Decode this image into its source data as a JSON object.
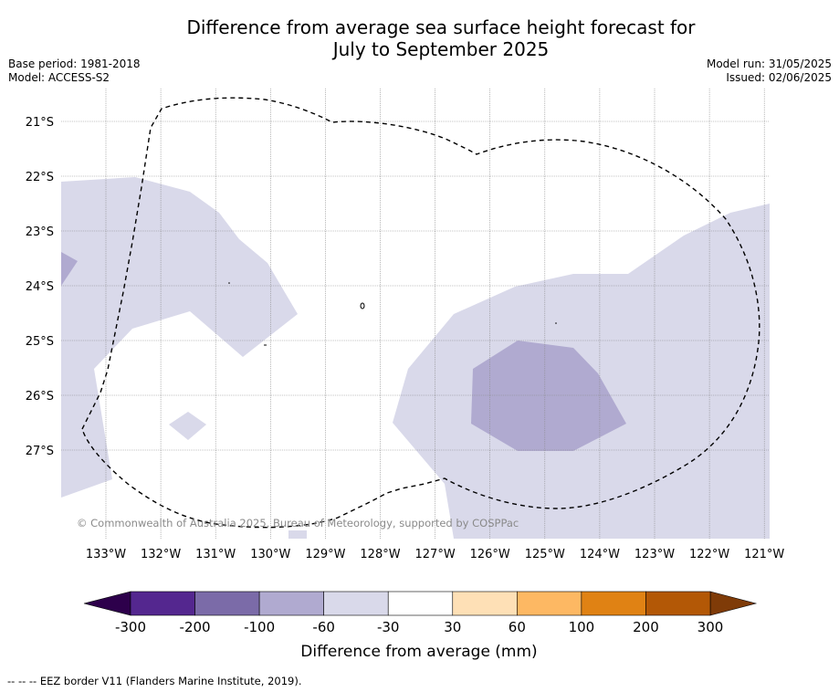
{
  "title_line1": "Difference from average sea surface height forecast for",
  "title_line2": "July to September 2025",
  "base_period": "Base period: 1981-2018",
  "model": "Model: ACCESS-S2",
  "model_run": "Model run: 31/05/2025",
  "issued": "Issued: 02/06/2025",
  "copyright": "© Commonwealth of Australia 2025, Bureau of Meteorology, supported by COSPPac",
  "lat_labels": [
    "21°S",
    "22°S",
    "23°S",
    "24°S",
    "25°S",
    "26°S",
    "27°S"
  ],
  "lon_labels": [
    "133°W",
    "132°W",
    "131°W",
    "130°W",
    "129°W",
    "128°W",
    "127°W",
    "126°W",
    "125°W",
    "124°W",
    "123°W",
    "122°W",
    "121°W"
  ],
  "colorbar": {
    "label": "Difference from average (mm)",
    "ticks": [
      "-300",
      "-200",
      "-100",
      "-60",
      "-30",
      "30",
      "60",
      "100",
      "200",
      "300"
    ],
    "colors": [
      "#54278f",
      "#7b6ba8",
      "#b0aad0",
      "#d9d9ea",
      "#ffffff",
      "#fee0b6",
      "#fdb863",
      "#e08214",
      "#b35806"
    ],
    "under_color": "#2d004b",
    "over_color": "#7f3b08"
  },
  "field_colors": {
    "band_-60_-30": "#d9d9ea",
    "band_-100_-60": "#b0aad0"
  },
  "footnote": "--  --  -- EEZ border V11 (Flanders Marine Institute, 2019)."
}
